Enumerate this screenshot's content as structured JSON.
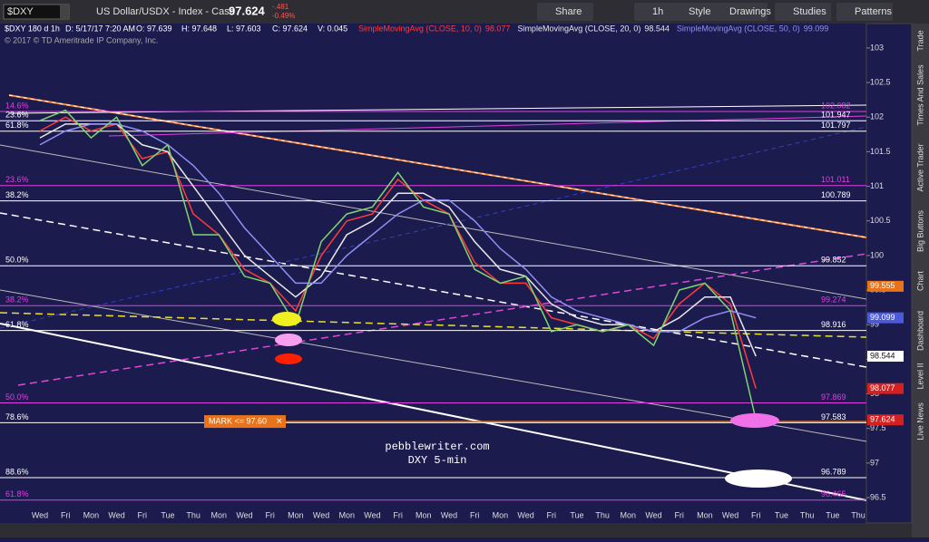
{
  "toolbar": {
    "symbol": "$DXY",
    "description": "US Dollar/USDX - Index - Cash",
    "last": 97.624,
    "change": "-.481",
    "change_pct": "-0.49%",
    "buttons": [
      "Share",
      "1h",
      "Style",
      "Drawings",
      "Studies",
      "Patterns"
    ]
  },
  "side_tabs": [
    "Trade",
    "Times And Sales",
    "Active Trader",
    "Big Buttons",
    "Chart",
    "Dashboard",
    "Level II",
    "Live News"
  ],
  "chart_data": {
    "type": "line",
    "header": "$DXY 180 d 1h",
    "ohlc": [
      "D: 5/17/17 7:20 AM",
      "O: 97.639",
      "H: 97.648",
      "L: 97.603",
      "C: 97.624",
      "V: 0.045"
    ],
    "copyright": "© 2017 © TD Ameritrade IP Company, Inc.",
    "annotations": [
      "pebblewriter.com",
      "DXY 5-min"
    ],
    "categories": [
      "Wed",
      "Fri",
      "Mon",
      "Wed",
      "Fri",
      "Tue",
      "Thu",
      "Mon",
      "Wed",
      "Fri",
      "Mon",
      "Wed",
      "Mon",
      "Wed",
      "Fri",
      "Mon",
      "Wed",
      "Fri",
      "Mon",
      "Wed",
      "Fri",
      "Tue",
      "Thu",
      "Mon",
      "Wed",
      "Fri",
      "Mon",
      "Wed",
      "Fri",
      "Tue",
      "Thu",
      "Tue",
      "Thu"
    ],
    "price": {
      "color": "#7fd46f",
      "values": [
        101.95,
        102.1,
        101.7,
        102.0,
        101.3,
        101.6,
        100.3,
        100.3,
        99.7,
        99.6,
        99.0,
        100.2,
        100.6,
        100.7,
        101.2,
        100.7,
        100.6,
        99.8,
        99.6,
        99.7,
        98.9,
        99.0,
        98.9,
        99.0,
        98.7,
        99.5,
        99.6,
        99.2,
        97.624,
        null,
        null,
        null,
        null
      ]
    },
    "series": [
      {
        "name": "SimpleMovingAvg (CLOSE, 10, 0)",
        "color": "#ff3b3b",
        "values": [
          101.8,
          102.0,
          101.8,
          101.9,
          101.4,
          101.5,
          100.6,
          100.3,
          99.8,
          99.6,
          99.2,
          100.0,
          100.5,
          100.6,
          101.1,
          100.8,
          100.6,
          99.9,
          99.6,
          99.6,
          99.1,
          99.0,
          98.9,
          99.0,
          98.8,
          99.3,
          99.6,
          99.3,
          98.077,
          null,
          null,
          null,
          null
        ]
      },
      {
        "name": "SimpleMovingAvg (CLOSE, 20, 0)",
        "color": "#e8e8e8",
        "values": [
          101.7,
          101.9,
          101.9,
          101.9,
          101.6,
          101.5,
          101.0,
          100.5,
          100.0,
          99.7,
          99.4,
          99.7,
          100.3,
          100.5,
          100.9,
          100.9,
          100.7,
          100.2,
          99.8,
          99.7,
          99.3,
          99.1,
          99.0,
          99.0,
          98.9,
          99.1,
          99.4,
          99.4,
          98.544,
          null,
          null,
          null,
          null
        ]
      },
      {
        "name": "SimpleMovingAvg (CLOSE, 50, 0)",
        "color": "#8f8ff5",
        "values": [
          101.6,
          101.8,
          101.9,
          101.9,
          101.8,
          101.6,
          101.3,
          100.9,
          100.4,
          100.0,
          99.6,
          99.6,
          100.0,
          100.3,
          100.6,
          100.8,
          100.8,
          100.5,
          100.1,
          99.8,
          99.4,
          99.2,
          99.1,
          99.0,
          98.9,
          98.9,
          99.1,
          99.2,
          99.099,
          null,
          null,
          null,
          null
        ]
      }
    ],
    "ylim": [
      96.16,
      103.3
    ],
    "yticks": [
      96.5,
      97,
      97.5,
      98,
      98.5,
      99,
      99.5,
      100,
      100.5,
      101,
      101.5,
      102,
      102.5,
      103
    ],
    "grid": false,
    "levels": [
      {
        "label": "14.6%",
        "value": 102.082,
        "color": "#e040e0"
      },
      {
        "label": "23.6%",
        "value": 101.947,
        "color": "#ffffff"
      },
      {
        "label": "61.8%",
        "value": 101.797,
        "color": "#ffffff"
      },
      {
        "label": "23.6%",
        "value": 101.011,
        "color": "#e040e0"
      },
      {
        "label": "38.2%",
        "value": 100.789,
        "color": "#ffffff"
      },
      {
        "label": "50.0%",
        "value": 99.852,
        "color": "#ffffff"
      },
      {
        "label": "38.2%",
        "value": 99.274,
        "color": "#e040e0"
      },
      {
        "label": "61.8%",
        "value": 98.916,
        "color": "#ffffff"
      },
      {
        "label": "50.0%",
        "value": 97.869,
        "color": "#e040e0"
      },
      {
        "label": "78.6%",
        "value": 97.583,
        "color": "#ffffff"
      },
      {
        "label": "88.6%",
        "value": 96.789,
        "color": "#ffffff"
      },
      {
        "label": "61.8%",
        "value": 96.465,
        "color": "#e040e0"
      }
    ],
    "mark": {
      "label": "MARK <= 97.60",
      "value": 97.6,
      "color": "#e8731a"
    },
    "price_badges": [
      {
        "value": 99.555,
        "color": "#e8731a"
      },
      {
        "value": 99.099,
        "color": "#4a5ad8"
      },
      {
        "value": 98.544,
        "color": "#ffffff"
      },
      {
        "value": 98.077,
        "color": "#d42020"
      },
      {
        "value": 97.624,
        "color": "#d42020"
      }
    ]
  }
}
